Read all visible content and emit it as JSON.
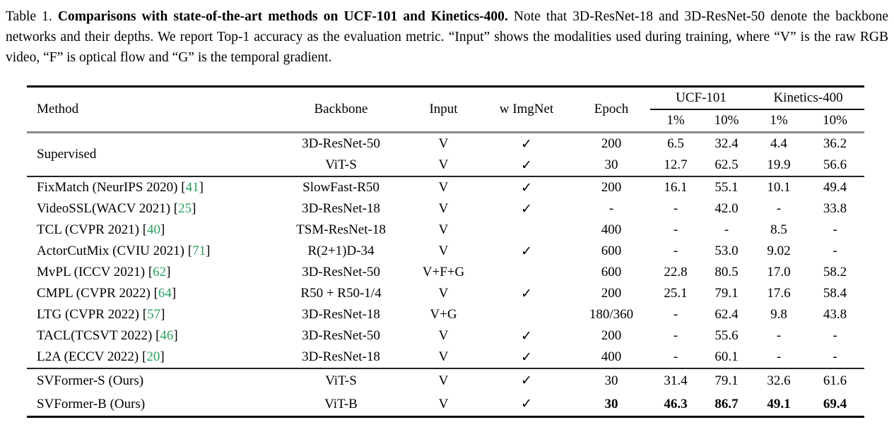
{
  "caption": {
    "prefix": "Table 1. ",
    "bold": "Comparisons with state-of-the-art methods on UCF-101 and Kinetics-400.",
    "rest": " Note that 3D-ResNet-18 and 3D-ResNet-50 denote the backbone networks and their depths. We report Top-1 accuracy as the evaluation metric. “Input” shows the modalities used during training, where “V” is the raw RGB video, “F” is optical flow and “G” is the temporal gradient."
  },
  "icons": {
    "check": "✓"
  },
  "colors": {
    "citation_green": "#2aa05f"
  },
  "chart_data": {
    "type": "table",
    "title": "Comparisons with state-of-the-art methods on UCF-101 and Kinetics-400 (Top-1 accuracy)"
  },
  "table": {
    "columns": [
      "Method",
      "Backbone",
      "Input",
      "w ImgNet",
      "Epoch"
    ],
    "span_headers": [
      "UCF-101",
      "Kinetics-400"
    ],
    "sub_headers": [
      "1%",
      "10%",
      "1%",
      "10%"
    ],
    "groups": [
      {
        "name": "supervised",
        "rows": [
          {
            "method": "Supervised",
            "rowspan": 2,
            "cite": null,
            "backbone": "3D-ResNet-50",
            "input": "V",
            "imgnet": true,
            "epoch": "200",
            "metrics": [
              "6.5",
              "32.4",
              "4.4",
              "36.2"
            ],
            "bold": false
          },
          {
            "method": null,
            "cite": null,
            "backbone": "ViT-S",
            "input": "V",
            "imgnet": true,
            "epoch": "30",
            "metrics": [
              "12.7",
              "62.5",
              "19.9",
              "56.6"
            ],
            "bold": false
          }
        ]
      },
      {
        "name": "prior",
        "rows": [
          {
            "method": "FixMatch (NeurIPS 2020)",
            "cite": "41",
            "backbone": "SlowFast-R50",
            "input": "V",
            "imgnet": true,
            "epoch": "200",
            "metrics": [
              "16.1",
              "55.1",
              "10.1",
              "49.4"
            ],
            "bold": false
          },
          {
            "method": "VideoSSL(WACV 2021)",
            "cite": "25",
            "backbone": "3D-ResNet-18",
            "input": "V",
            "imgnet": true,
            "epoch": "-",
            "metrics": [
              "-",
              "42.0",
              "-",
              "33.8"
            ],
            "bold": false
          },
          {
            "method": "TCL (CVPR 2021)",
            "cite": "40",
            "backbone": "TSM-ResNet-18",
            "input": "V",
            "imgnet": false,
            "epoch": "400",
            "metrics": [
              "-",
              "-",
              "8.5",
              "-"
            ],
            "bold": false
          },
          {
            "method": "ActorCutMix (CVIU 2021)",
            "cite": "71",
            "backbone": "R(2+1)D-34",
            "input": "V",
            "imgnet": true,
            "epoch": "600",
            "metrics": [
              "-",
              "53.0",
              "9.02",
              "-"
            ],
            "bold": false
          },
          {
            "method": "MvPL (ICCV 2021)",
            "cite": "62",
            "backbone": "3D-ResNet-50",
            "input": "V+F+G",
            "imgnet": false,
            "epoch": "600",
            "metrics": [
              "22.8",
              "80.5",
              "17.0",
              "58.2"
            ],
            "bold": false
          },
          {
            "method": "CMPL (CVPR 2022)",
            "cite": "64",
            "backbone": "R50 + R50-1/4",
            "input": "V",
            "imgnet": true,
            "epoch": "200",
            "metrics": [
              "25.1",
              "79.1",
              "17.6",
              "58.4"
            ],
            "bold": false
          },
          {
            "method": "LTG (CVPR 2022)",
            "cite": "57",
            "backbone": "3D-ResNet-18",
            "input": "V+G",
            "imgnet": false,
            "epoch": "180/360",
            "metrics": [
              "-",
              "62.4",
              "9.8",
              "43.8"
            ],
            "bold": false
          },
          {
            "method": "TACL(TCSVT 2022)",
            "cite": "46",
            "backbone": "3D-ResNet-50",
            "input": "V",
            "imgnet": true,
            "epoch": "200",
            "metrics": [
              "-",
              "55.6",
              "-",
              "-"
            ],
            "bold": false
          },
          {
            "method": "L2A (ECCV 2022)",
            "cite": "20",
            "backbone": "3D-ResNet-18",
            "input": "V",
            "imgnet": true,
            "epoch": "400",
            "metrics": [
              "-",
              "60.1",
              "-",
              "-"
            ],
            "bold": false
          }
        ]
      },
      {
        "name": "ours",
        "rows": [
          {
            "method": "SVFormer-S (Ours)",
            "cite": null,
            "backbone": "ViT-S",
            "input": "V",
            "imgnet": true,
            "epoch": "30",
            "metrics": [
              "31.4",
              "79.1",
              "32.6",
              "61.6"
            ],
            "bold": false
          },
          {
            "method": "SVFormer-B (Ours)",
            "cite": null,
            "backbone": "ViT-B",
            "input": "V",
            "imgnet": true,
            "epoch": "30",
            "metrics": [
              "46.3",
              "86.7",
              "49.1",
              "69.4"
            ],
            "bold": true
          }
        ]
      }
    ]
  }
}
